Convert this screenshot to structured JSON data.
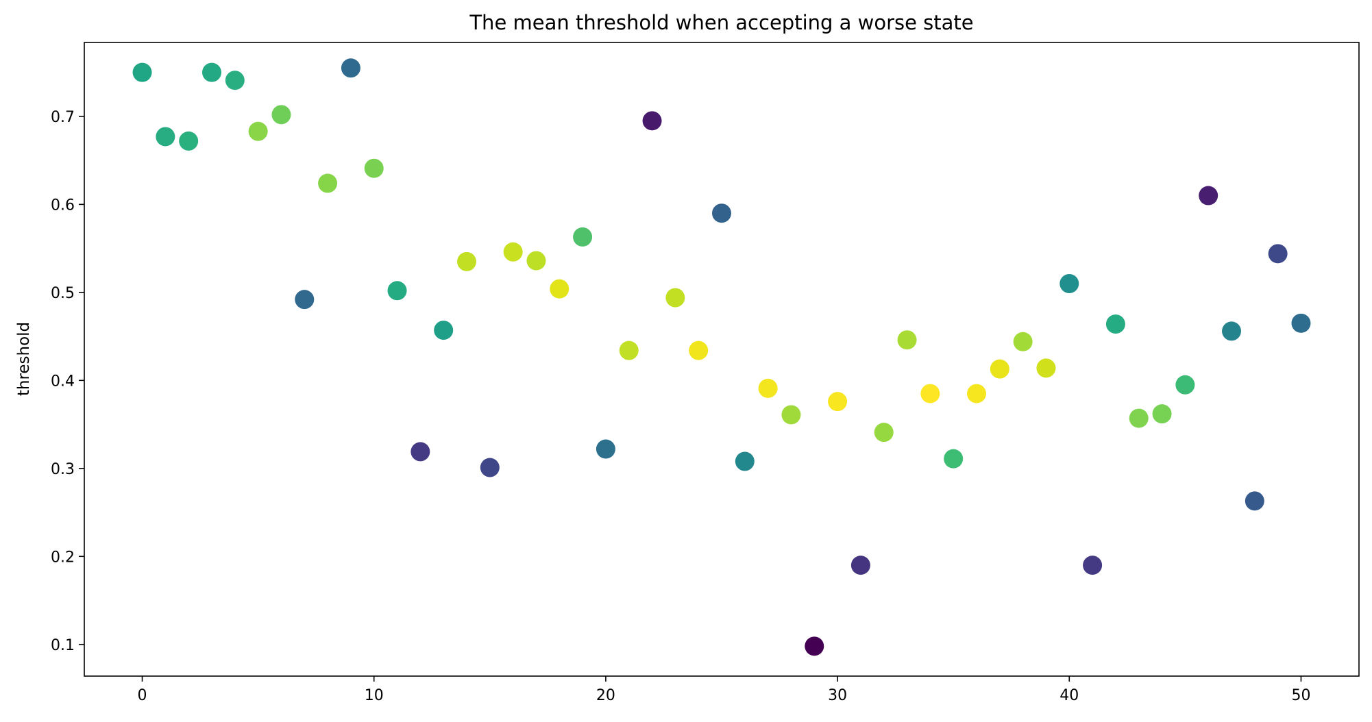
{
  "chart_data": {
    "type": "scatter",
    "title": "The mean threshold when accepting a worse state",
    "xlabel": "",
    "ylabel": "threshold",
    "xlim": [
      -2.5,
      52.5
    ],
    "ylim": [
      0.064,
      0.784
    ],
    "xticks": [
      0,
      10,
      20,
      30,
      40,
      50
    ],
    "yticks": [
      0.1,
      0.2,
      0.3,
      0.4,
      0.5,
      0.6,
      0.7
    ],
    "grid": false,
    "colormap": "viridis",
    "series": [
      {
        "x": [
          0,
          1,
          2,
          3,
          4,
          5,
          6,
          7,
          8,
          9,
          10,
          11,
          12,
          13,
          14,
          15,
          16,
          17,
          18,
          19,
          20,
          21,
          22,
          23,
          24,
          25,
          26,
          27,
          28,
          29,
          30,
          31,
          32,
          33,
          34,
          35,
          36,
          37,
          38,
          39,
          40,
          41,
          42,
          43,
          44,
          45,
          46,
          47,
          48,
          49,
          50
        ],
        "y": [
          0.75,
          0.677,
          0.672,
          0.75,
          0.741,
          0.683,
          0.702,
          0.492,
          0.624,
          0.755,
          0.641,
          0.502,
          0.319,
          0.457,
          0.535,
          0.301,
          0.546,
          0.536,
          0.504,
          0.563,
          0.322,
          0.434,
          0.695,
          0.494,
          0.434,
          0.59,
          0.308,
          0.391,
          0.361,
          0.098,
          0.376,
          0.19,
          0.341,
          0.446,
          0.385,
          0.311,
          0.385,
          0.413,
          0.444,
          0.414,
          0.51,
          0.19,
          0.464,
          0.357,
          0.362,
          0.395,
          0.61,
          0.456,
          0.263,
          0.544,
          0.465
        ],
        "colors": [
          "#21a685",
          "#27ad81",
          "#2ab07f",
          "#23a983",
          "#28ae80",
          "#8ad547",
          "#6ece58",
          "#31688e",
          "#86d549",
          "#306a8e",
          "#7ad151",
          "#25ab82",
          "#443a83",
          "#1f9f88",
          "#c2df23",
          "#3f4788",
          "#c8e020",
          "#bddf26",
          "#e2e418",
          "#4fc16b",
          "#2d708e",
          "#c0df25",
          "#481a6c",
          "#c2df23",
          "#f1e51d",
          "#33638d",
          "#23888e",
          "#f3e51e",
          "#9fda3a",
          "#440154",
          "#f8e621",
          "#453581",
          "#95d840",
          "#a8db34",
          "#fde725",
          "#3dbc74",
          "#f6e620",
          "#e8e419",
          "#a2da37",
          "#d0e11c",
          "#218f8d",
          "#443983",
          "#25ac82",
          "#7fd34e",
          "#77d153",
          "#3bbb75",
          "#481f70",
          "#25838e",
          "#375a8c",
          "#3e4989",
          "#2e6d8e"
        ]
      }
    ]
  }
}
